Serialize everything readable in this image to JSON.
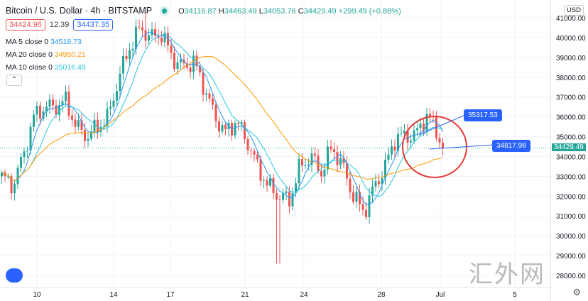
{
  "header": {
    "title": "Bitcoin / U.S. Dollar · 4h · BITSTAMP",
    "o_label": "O",
    "o": "34116.87",
    "h_label": "H",
    "h": "34463.49",
    "l_label": "L",
    "l": "34053.76",
    "c_label": "C",
    "c": "34429.49",
    "change": "+299.49 (+0.88%)"
  },
  "quote": {
    "bid": "34424.96",
    "spread": "12.39",
    "ask": "34437.35"
  },
  "indicators": [
    {
      "label": "MA 5 close 0",
      "value": "34518.73",
      "color": "#2196f3"
    },
    {
      "label": "MA 20 close 0",
      "value": "34950.21",
      "color": "#ff9800"
    },
    {
      "label": "MA 10 close 0",
      "value": "35016.49",
      "color": "#26c6da"
    }
  ],
  "currency": "USD",
  "callouts": [
    "35317.53",
    "34817.98"
  ],
  "last_price": "34429.49",
  "watermark": "汇外网",
  "colors": {
    "up": "#26a69a",
    "down": "#ef5350",
    "accent": "#2962ff",
    "circle": "#e53935"
  },
  "chart_data": {
    "type": "candlestick",
    "ylim": [
      27800,
      41500
    ],
    "y_ticks": [
      "41000.00",
      "40000.00",
      "39000.00",
      "38000.00",
      "37000.00",
      "36000.00",
      "35000.00",
      "34000.00",
      "33000.00",
      "32000.00",
      "31000.00",
      "30000.00",
      "29000.00",
      "28000.00"
    ],
    "x_ticks": [
      "10",
      "14",
      "17",
      "21",
      "24",
      "28",
      "Jul",
      "5"
    ],
    "path_closes": [
      33000,
      32500,
      34000,
      36000,
      36500,
      36500,
      36800,
      35500,
      35000,
      35500,
      36000,
      38000,
      39500,
      40500,
      40000,
      40200,
      39000,
      38500,
      38800,
      37500,
      36000,
      35200,
      35800,
      34800,
      33500,
      32500,
      32000,
      31800,
      33500,
      34000,
      33200,
      34500,
      33500,
      32000,
      31200,
      32500,
      33500,
      35000,
      35000,
      35200,
      36200,
      35000,
      34500,
      34430
    ]
  }
}
